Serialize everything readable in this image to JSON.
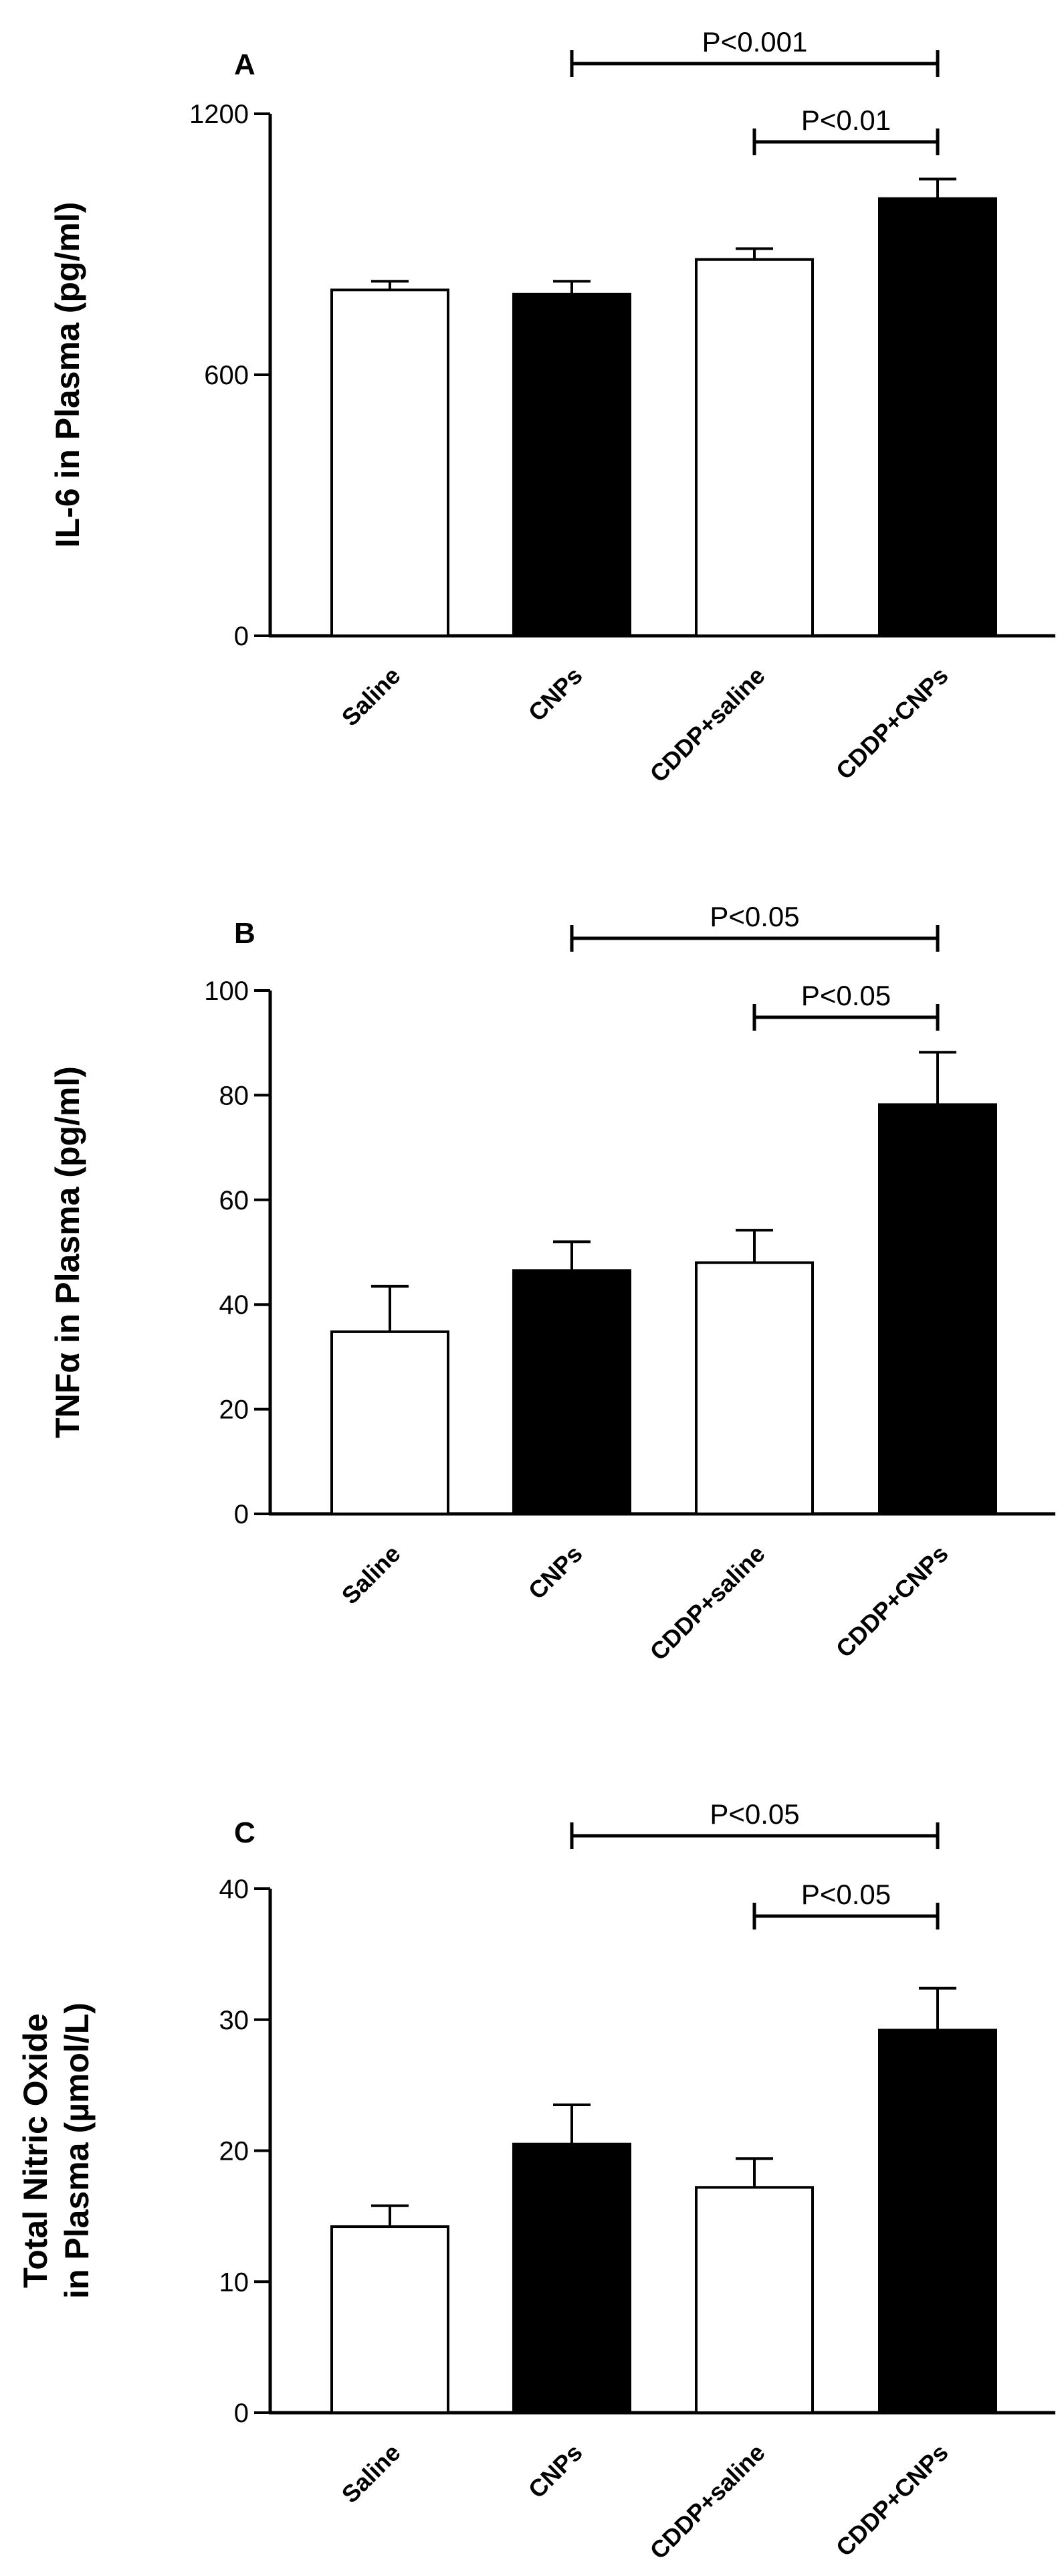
{
  "colors": {
    "open_bar": "#ffffff",
    "filled_bar": "#000000",
    "axis": "#000000"
  },
  "chart_data": [
    {
      "type": "bar",
      "panel": "A",
      "categories": [
        "Saline",
        "CNPs",
        "CDDP+saline",
        "CDDP+CNPs"
      ],
      "bar_fill": [
        "open",
        "filled",
        "open",
        "filled"
      ],
      "values": [
        795,
        785,
        865,
        1005
      ],
      "error_upper": [
        815,
        815,
        890,
        1050
      ],
      "ylabel_lines": [
        "IL-6 in Plasma (pg/ml)"
      ],
      "ylim": [
        0,
        1200
      ],
      "yticks": [
        0,
        600,
        1200
      ],
      "ytick_labels": [
        "0",
        "600",
        "1200"
      ],
      "significance": [
        {
          "label": "P<0.001",
          "from": 1,
          "to": 3
        },
        {
          "label": "P<0.01",
          "from": 2,
          "to": 3
        }
      ]
    },
    {
      "type": "bar",
      "panel": "B",
      "categories": [
        "Saline",
        "CNPs",
        "CDDP+saline",
        "CDDP+CNPs"
      ],
      "bar_fill": [
        "open",
        "filled",
        "open",
        "filled"
      ],
      "values": [
        34.8,
        46.5,
        48.0,
        78.2
      ],
      "error_upper": [
        43.5,
        52.0,
        54.2,
        88.2
      ],
      "ylabel_lines": [
        "TNFα in Plasma (pg/ml)"
      ],
      "ylim": [
        0,
        100
      ],
      "yticks": [
        0,
        20,
        40,
        60,
        80,
        100
      ],
      "ytick_labels": [
        "0",
        "20",
        "40",
        "60",
        "80",
        "100"
      ],
      "significance": [
        {
          "label": "P<0.05",
          "from": 1,
          "to": 3
        },
        {
          "label": "P<0.05",
          "from": 2,
          "to": 3
        }
      ]
    },
    {
      "type": "bar",
      "panel": "C",
      "categories": [
        "Saline",
        "CNPs",
        "CDDP+saline",
        "CDDP+CNPs"
      ],
      "bar_fill": [
        "open",
        "filled",
        "open",
        "filled"
      ],
      "values": [
        14.2,
        20.5,
        17.2,
        29.2
      ],
      "error_upper": [
        15.8,
        23.5,
        19.4,
        32.4
      ],
      "ylabel_lines": [
        "Total Nitric Oxide",
        "in Plasma (µmol/L)"
      ],
      "ylim": [
        0,
        40
      ],
      "yticks": [
        0,
        10,
        20,
        30,
        40
      ],
      "ytick_labels": [
        "0",
        "10",
        "20",
        "30",
        "40"
      ],
      "significance": [
        {
          "label": "P<0.05",
          "from": 1,
          "to": 3
        },
        {
          "label": "P<0.05",
          "from": 2,
          "to": 3
        }
      ]
    }
  ]
}
